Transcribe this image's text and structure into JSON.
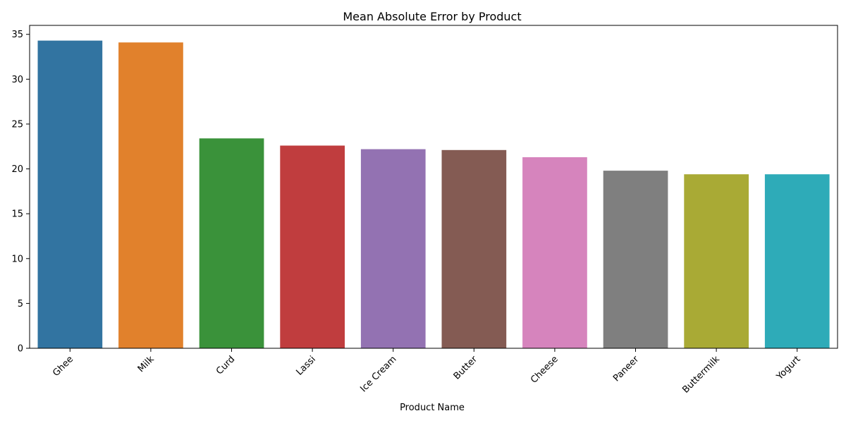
{
  "chart_data": {
    "type": "bar",
    "title": "Mean Absolute Error by Product",
    "xlabel": "Product Name",
    "ylabel": "",
    "categories": [
      "Ghee",
      "Milk",
      "Curd",
      "Lassi",
      "Ice Cream",
      "Butter",
      "Cheese",
      "Paneer",
      "Buttermilk",
      "Yogurt"
    ],
    "values": [
      34.3,
      34.1,
      23.4,
      22.6,
      22.2,
      22.1,
      21.3,
      19.8,
      19.4,
      19.4
    ],
    "colors": [
      "#3274a1",
      "#e1812c",
      "#3a923a",
      "#c03d3e",
      "#9372b2",
      "#845b53",
      "#d684bd",
      "#7f7f7f",
      "#a9aa35",
      "#2eabb8"
    ],
    "ylim": [
      0,
      36
    ],
    "yticks": [
      0,
      5,
      10,
      15,
      20,
      25,
      30,
      35
    ],
    "grid": false,
    "legend": "none"
  }
}
